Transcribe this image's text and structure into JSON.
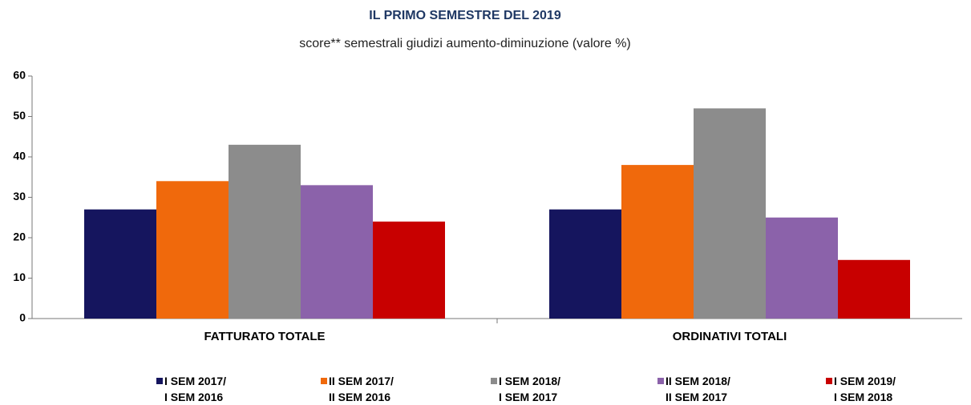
{
  "chart_data": {
    "type": "bar",
    "title": "IL PRIMO SEMESTRE DEL 2019",
    "subtitle": "score** semestrali giudizi aumento-diminuzione (valore %)",
    "categories": [
      "FATTURATO TOTALE",
      "ORDINATIVI TOTALI"
    ],
    "series": [
      {
        "name": "I SEM 2017/\nI SEM 2016",
        "color": "#15155e",
        "values": [
          27,
          27
        ]
      },
      {
        "name": "II SEM 2017/\nII SEM 2016",
        "color": "#f0690c",
        "values": [
          34,
          38
        ]
      },
      {
        "name": "I SEM 2018/\nI SEM 2017",
        "color": "#8c8c8c",
        "values": [
          43,
          52
        ]
      },
      {
        "name": "II SEM 2018/\nII SEM 2017",
        "color": "#8b62aa",
        "values": [
          33,
          25
        ]
      },
      {
        "name": "I SEM 2019/\nI SEM 2018",
        "color": "#c80000",
        "values": [
          24,
          14.5
        ]
      }
    ],
    "ylim": [
      0,
      60
    ],
    "yticks": [
      0,
      10,
      20,
      30,
      40,
      50,
      60
    ],
    "grid": false,
    "legend": "bottom"
  }
}
